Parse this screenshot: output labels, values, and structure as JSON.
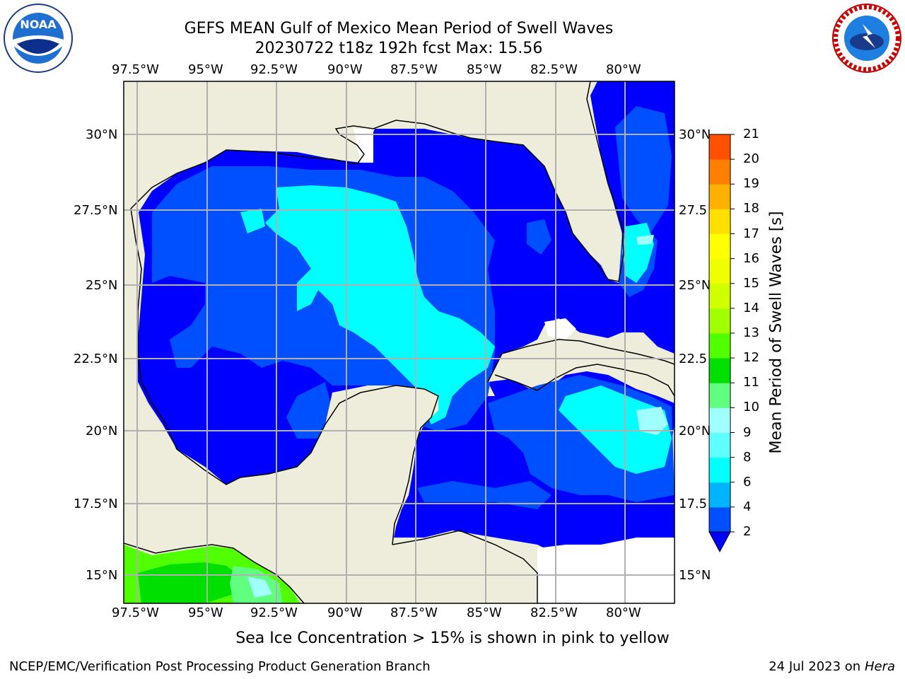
{
  "title": {
    "line1": "GEFS MEAN Gulf of Mexico Mean Period of Swell Waves",
    "line2": "20230722 t18z 192h fcst   Max: 15.56"
  },
  "logos": {
    "left": {
      "name": "noaa-logo",
      "text": "NOAA"
    },
    "right": {
      "name": "nws-logo",
      "text": "NATIONAL WEATHER SERVICE"
    }
  },
  "map": {
    "lon_labels": [
      "97.5°W",
      "95°W",
      "92.5°W",
      "90°W",
      "87.5°W",
      "85°W",
      "82.5°W",
      "80°W"
    ],
    "lat_labels": [
      "30°N",
      "27.5°N",
      "25°N",
      "22.5°N",
      "20°N",
      "17.5°N",
      "15°N"
    ],
    "right_lat_labels": [
      "30°N",
      "27.5",
      "25°N",
      "22.5",
      "20°N",
      "17.5",
      "15°N"
    ],
    "colors": {
      "land": "#eeeddc",
      "ocean_low": "#0000ff",
      "grid": "#b0b0b0",
      "coast": "#000000"
    }
  },
  "colorbar": {
    "label": "Mean Period of Swell Waves [s]",
    "ticks": [
      "2",
      "4",
      "6",
      "8",
      "9",
      "10",
      "11",
      "12",
      "13",
      "14",
      "15",
      "16",
      "17",
      "18",
      "19",
      "20",
      "21"
    ],
    "colors": [
      "#0050ff",
      "#00b4ff",
      "#00ffff",
      "#60ffff",
      "#a0ffff",
      "#60ff80",
      "#00e000",
      "#50ff00",
      "#a0ff00",
      "#d0ff00",
      "#f0ff00",
      "#ffff00",
      "#ffe000",
      "#ffb000",
      "#ff8000",
      "#ff5000",
      "#ff2000",
      "#ff0000"
    ],
    "extend_color": "#0000ff"
  },
  "notes": {
    "sea_ice": "Sea Ice Concentration > 15% is shown in pink to yellow",
    "credit": "NCEP/EMC/Verification Post Processing Product Generation Branch",
    "date": "24 Jul 2023 on ",
    "machine": "Hera"
  }
}
